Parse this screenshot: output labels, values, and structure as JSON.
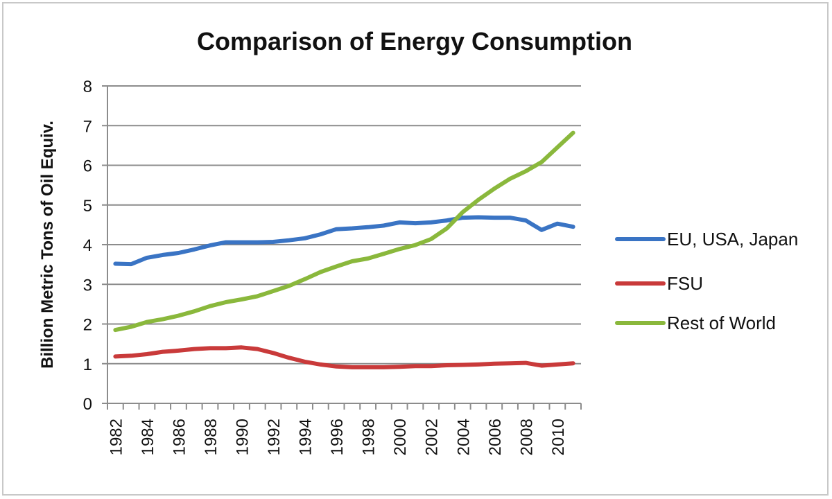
{
  "chart_data": {
    "type": "line",
    "title": "Comparison of Energy Consumption",
    "xlabel": "",
    "ylabel": "Billion Metric Tons of Oil Equiv.",
    "ylim": [
      0,
      8
    ],
    "yticks": [
      "0",
      "1",
      "2",
      "3",
      "4",
      "5",
      "6",
      "7",
      "8"
    ],
    "grid": true,
    "legend_position": "right",
    "x": [
      1982,
      1983,
      1984,
      1985,
      1986,
      1987,
      1988,
      1989,
      1990,
      1991,
      1992,
      1993,
      1994,
      1995,
      1996,
      1997,
      1998,
      1999,
      2000,
      2001,
      2002,
      2003,
      2004,
      2005,
      2006,
      2007,
      2008,
      2009,
      2010,
      2011
    ],
    "xtick_labels": [
      "1982",
      "1984",
      "1986",
      "1988",
      "1990",
      "1992",
      "1994",
      "1996",
      "1998",
      "2000",
      "2002",
      "2004",
      "2006",
      "2008",
      "2010"
    ],
    "series": [
      {
        "name": "EU, USA, Japan",
        "color": "#3a74c4",
        "values": [
          3.52,
          3.51,
          3.67,
          3.74,
          3.79,
          3.88,
          3.98,
          4.06,
          4.06,
          4.06,
          4.07,
          4.11,
          4.16,
          4.26,
          4.39,
          4.41,
          4.44,
          4.48,
          4.56,
          4.54,
          4.56,
          4.61,
          4.68,
          4.69,
          4.68,
          4.68,
          4.61,
          4.37,
          4.53,
          4.45
        ]
      },
      {
        "name": "FSU",
        "color": "#c93a3a",
        "values": [
          1.18,
          1.2,
          1.24,
          1.3,
          1.33,
          1.37,
          1.39,
          1.39,
          1.41,
          1.37,
          1.27,
          1.15,
          1.05,
          0.98,
          0.93,
          0.91,
          0.91,
          0.91,
          0.92,
          0.94,
          0.94,
          0.96,
          0.97,
          0.98,
          1.0,
          1.01,
          1.02,
          0.95,
          0.98,
          1.01
        ]
      },
      {
        "name": "Rest of World",
        "color": "#8ab83c",
        "values": [
          1.85,
          1.93,
          2.05,
          2.12,
          2.21,
          2.32,
          2.45,
          2.55,
          2.62,
          2.7,
          2.83,
          2.96,
          3.13,
          3.31,
          3.45,
          3.58,
          3.65,
          3.77,
          3.89,
          3.99,
          4.14,
          4.41,
          4.82,
          5.13,
          5.41,
          5.66,
          5.85,
          6.08,
          6.45,
          6.82
        ]
      }
    ]
  }
}
